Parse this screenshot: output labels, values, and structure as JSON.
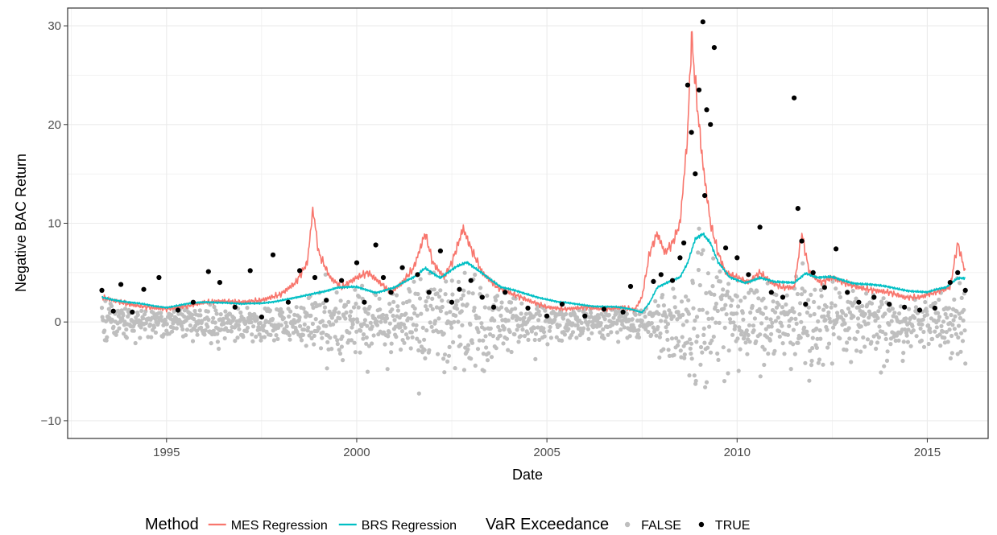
{
  "chart_data": {
    "type": "line",
    "title": "",
    "xlabel": "Date",
    "ylabel": "Negative BAC Return",
    "xlim": [
      1992.4,
      2016.6
    ],
    "ylim": [
      -11.8,
      31.8
    ],
    "x_ticks": [
      1995,
      2000,
      2005,
      2010,
      2015
    ],
    "x_tick_labels": [
      "1995",
      "2000",
      "2005",
      "2010",
      "2015"
    ],
    "y_ticks": [
      -10,
      0,
      10,
      20,
      30
    ],
    "y_tick_labels": [
      "−10",
      "0",
      "10",
      "20",
      "30"
    ],
    "grid": true,
    "legend_position": "bottom",
    "colors": {
      "mes": "#F8766D",
      "brs": "#00BFC4",
      "false_points": "#BEBEBE",
      "true_points": "#000000",
      "grid": "#EBEBEB"
    },
    "legends": [
      {
        "title": "Method",
        "items": [
          {
            "label": "MES Regression",
            "kind": "line",
            "color": "#F8766D"
          },
          {
            "label": "BRS Regression",
            "kind": "line",
            "color": "#00BFC4"
          }
        ]
      },
      {
        "title": "VaR Exceedance",
        "items": [
          {
            "label": "FALSE",
            "kind": "point",
            "color": "#BEBEBE"
          },
          {
            "label": "TRUE",
            "kind": "point",
            "color": "#000000"
          }
        ]
      }
    ],
    "series": [
      {
        "name": "MES Regression",
        "type": "line",
        "color": "#F8766D",
        "x": [
          1993.3,
          1993.6,
          1994.0,
          1994.5,
          1995.0,
          1995.5,
          1996.0,
          1996.5,
          1997.0,
          1997.5,
          1998.0,
          1998.4,
          1998.7,
          1998.85,
          1999.0,
          1999.3,
          1999.6,
          2000.0,
          2000.3,
          2000.6,
          2000.9,
          2001.2,
          2001.5,
          2001.8,
          2002.0,
          2002.3,
          2002.5,
          2002.8,
          2003.0,
          2003.3,
          2003.7,
          2004.0,
          2004.5,
          2005.0,
          2005.5,
          2006.0,
          2006.5,
          2007.0,
          2007.3,
          2007.5,
          2007.7,
          2007.9,
          2008.1,
          2008.3,
          2008.5,
          2008.7,
          2008.8,
          2008.95,
          2009.1,
          2009.3,
          2009.5,
          2009.7,
          2010.0,
          2010.3,
          2010.6,
          2010.9,
          2011.2,
          2011.5,
          2011.7,
          2011.9,
          2012.2,
          2012.5,
          2012.8,
          2013.2,
          2013.6,
          2014.0,
          2014.4,
          2014.8,
          2015.2,
          2015.6,
          2015.8,
          2016.0
        ],
        "y": [
          2.5,
          2.2,
          1.8,
          1.5,
          1.3,
          1.6,
          2.0,
          2.1,
          2.0,
          2.2,
          2.8,
          4.0,
          6.0,
          11.5,
          7.0,
          4.5,
          3.5,
          4.5,
          5.0,
          4.0,
          3.0,
          4.0,
          5.5,
          9.0,
          6.0,
          4.5,
          6.0,
          9.5,
          7.5,
          5.0,
          3.5,
          3.0,
          2.2,
          1.5,
          1.3,
          1.5,
          1.3,
          1.5,
          1.2,
          2.5,
          7.0,
          9.0,
          7.0,
          8.0,
          10.0,
          19.0,
          29.0,
          22.0,
          16.0,
          10.0,
          7.0,
          5.0,
          4.5,
          4.0,
          5.0,
          4.0,
          3.5,
          3.5,
          9.0,
          5.0,
          4.0,
          4.5,
          4.0,
          3.5,
          3.2,
          3.0,
          2.5,
          2.5,
          3.0,
          3.5,
          8.0,
          5.0
        ]
      },
      {
        "name": "BRS Regression",
        "type": "line",
        "color": "#00BFC4",
        "x": [
          1993.3,
          1994.0,
          1994.7,
          1995.0,
          1995.5,
          1996.0,
          1996.5,
          1997.0,
          1997.5,
          1998.0,
          1998.5,
          1999.0,
          1999.5,
          2000.0,
          2000.5,
          2001.0,
          2001.5,
          2001.8,
          2002.2,
          2002.6,
          2002.9,
          2003.3,
          2003.8,
          2004.3,
          2004.8,
          2005.3,
          2005.8,
          2006.3,
          2006.8,
          2007.2,
          2007.5,
          2007.7,
          2007.9,
          2008.2,
          2008.5,
          2008.7,
          2008.9,
          2009.1,
          2009.3,
          2009.5,
          2009.8,
          2010.2,
          2010.6,
          2011.0,
          2011.5,
          2011.8,
          2012.1,
          2012.5,
          2013.0,
          2013.5,
          2014.0,
          2014.5,
          2015.0,
          2015.5,
          2015.8,
          2016.0
        ],
        "y": [
          2.5,
          2.0,
          1.6,
          1.5,
          1.8,
          2.0,
          2.0,
          1.8,
          1.9,
          2.2,
          2.5,
          3.0,
          3.5,
          3.5,
          3.0,
          3.5,
          4.5,
          5.5,
          4.5,
          5.5,
          6.0,
          5.0,
          3.5,
          3.0,
          2.5,
          2.0,
          1.8,
          1.6,
          1.5,
          1.3,
          1.0,
          2.0,
          3.5,
          4.0,
          4.5,
          6.0,
          8.5,
          9.0,
          8.0,
          6.0,
          4.5,
          4.0,
          4.5,
          4.0,
          4.0,
          5.0,
          4.5,
          4.5,
          4.0,
          3.8,
          3.5,
          3.2,
          3.0,
          3.5,
          4.5,
          4.5
        ]
      },
      {
        "name": "TRUE",
        "type": "scatter",
        "color": "#000000",
        "x": [
          1993.3,
          1993.6,
          1993.8,
          1994.1,
          1994.4,
          1994.8,
          1995.3,
          1995.7,
          1996.1,
          1996.4,
          1996.8,
          1997.2,
          1997.5,
          1997.8,
          1998.2,
          1998.5,
          1998.9,
          1999.2,
          1999.6,
          2000.0,
          2000.2,
          2000.5,
          2000.7,
          2000.9,
          2001.2,
          2001.6,
          2001.9,
          2002.2,
          2002.5,
          2002.7,
          2003.0,
          2003.3,
          2003.6,
          2003.9,
          2004.5,
          2005.0,
          2005.4,
          2006.0,
          2006.5,
          2007.0,
          2007.2,
          2007.8,
          2008.0,
          2008.3,
          2008.5,
          2008.6,
          2008.7,
          2008.8,
          2008.9,
          2009.0,
          2009.1,
          2009.15,
          2009.2,
          2009.3,
          2009.4,
          2009.7,
          2010.0,
          2010.3,
          2010.6,
          2010.9,
          2011.2,
          2011.5,
          2011.6,
          2011.7,
          2011.8,
          2012.0,
          2012.3,
          2012.6,
          2012.9,
          2013.2,
          2013.6,
          2014.0,
          2014.4,
          2014.8,
          2015.2,
          2015.6,
          2015.8,
          2016.0
        ],
        "y": [
          3.2,
          1.1,
          3.8,
          1.0,
          3.3,
          4.5,
          1.2,
          2.0,
          5.1,
          4.0,
          1.5,
          5.2,
          0.5,
          6.8,
          2.0,
          5.2,
          4.5,
          2.2,
          4.2,
          6.0,
          2.0,
          7.8,
          4.5,
          3.0,
          5.5,
          4.8,
          3.0,
          7.2,
          2.0,
          3.3,
          4.2,
          2.5,
          1.5,
          3.0,
          1.4,
          0.6,
          1.8,
          0.6,
          1.3,
          1.0,
          3.6,
          4.1,
          4.8,
          4.2,
          6.5,
          8.0,
          24.0,
          19.2,
          15.0,
          23.5,
          30.4,
          12.8,
          21.5,
          20.0,
          27.8,
          7.5,
          6.5,
          4.8,
          9.6,
          3.0,
          2.5,
          22.7,
          11.5,
          8.2,
          1.8,
          5.0,
          3.5,
          7.4,
          3.0,
          2.0,
          2.5,
          1.8,
          1.5,
          1.2,
          1.4,
          4.0,
          5.0,
          3.2
        ]
      }
    ]
  }
}
